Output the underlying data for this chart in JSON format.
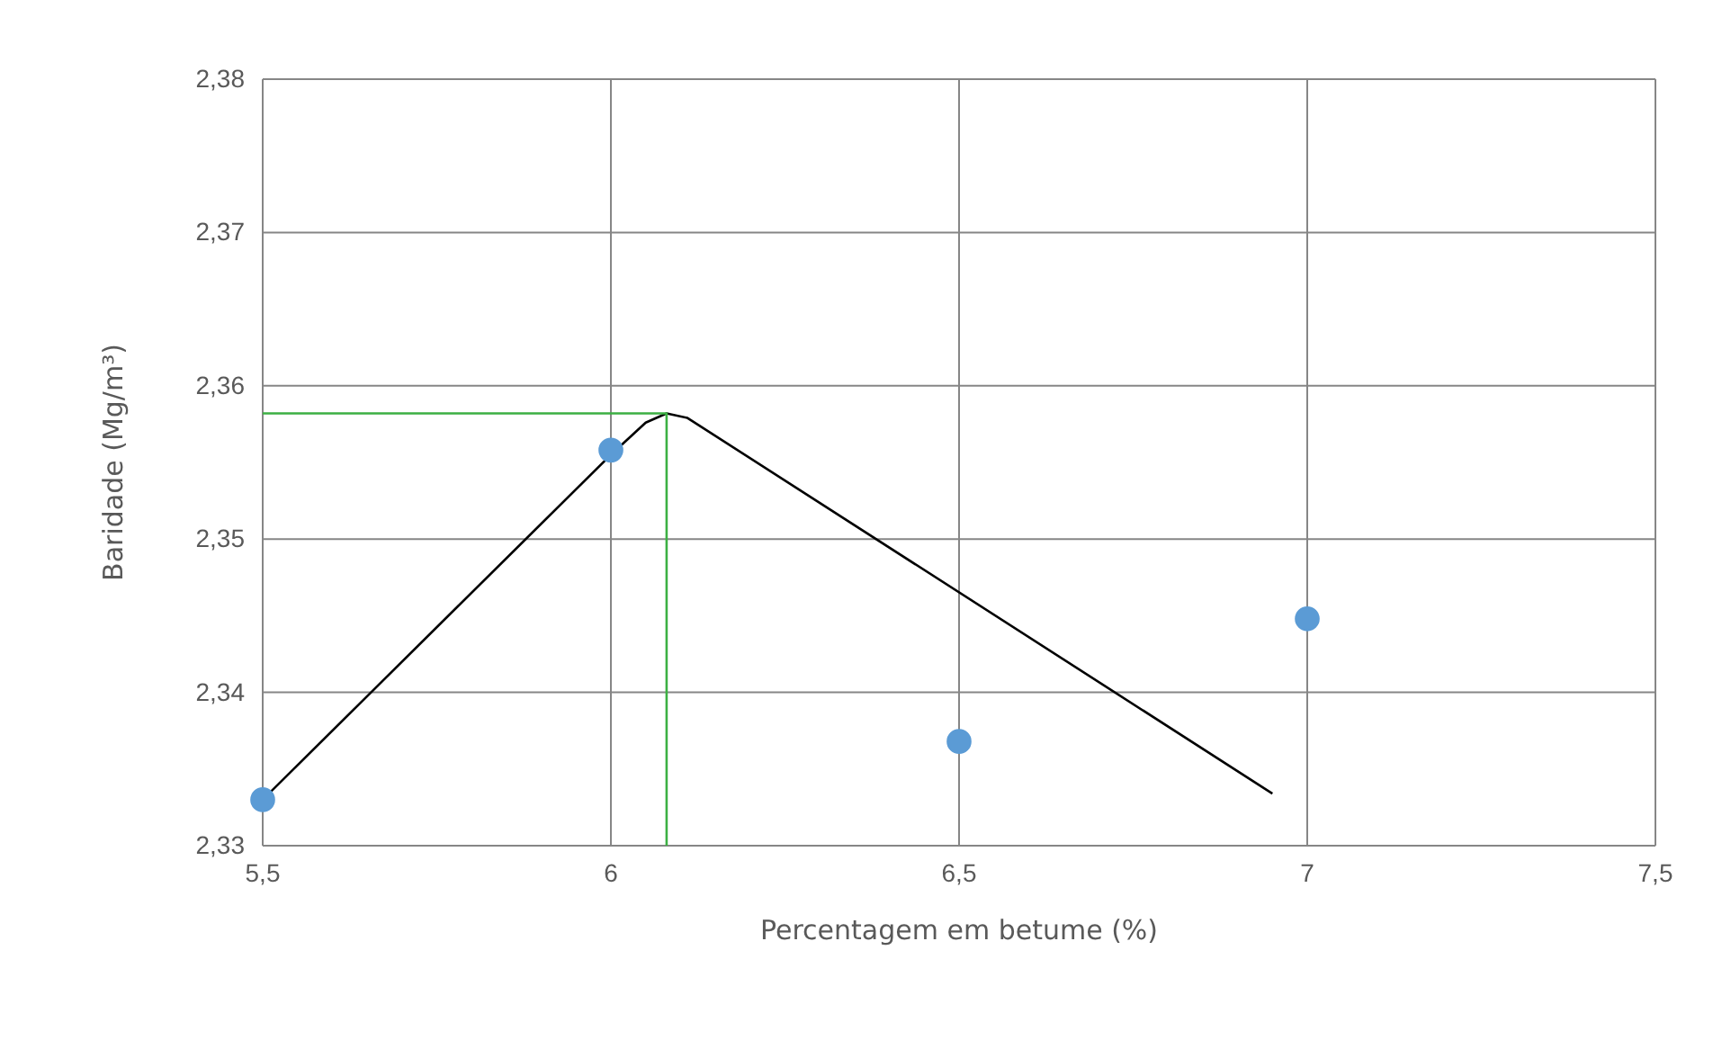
{
  "chart_data": {
    "type": "scatter",
    "xlabel": "Percentagem em betume  (%)",
    "ylabel": "Baridade (Mg/m³)",
    "xlim": [
      5.5,
      7.5
    ],
    "ylim": [
      2.33,
      2.38
    ],
    "xticks": [
      {
        "value": 5.5,
        "label": "5,5"
      },
      6,
      {
        "value": 6.5,
        "label": "6,5"
      },
      7,
      {
        "value": 7.5,
        "label": "7,5"
      }
    ],
    "yticks": [
      {
        "value": 2.33,
        "label": "2,33"
      },
      {
        "value": 2.34,
        "label": "2,34"
      },
      {
        "value": 2.35,
        "label": "2,35"
      },
      {
        "value": 2.36,
        "label": "2,36"
      },
      {
        "value": 2.37,
        "label": "2,37"
      },
      {
        "value": 2.38,
        "label": "2,38"
      }
    ],
    "grid": true,
    "series": [
      {
        "marker": "circle",
        "color": "#5b9bd5",
        "x": [
          5.5,
          6,
          6.5,
          7
        ],
        "values": [
          2.333,
          2.3558,
          2.3368,
          2.3448
        ]
      },
      {
        "type": "line",
        "color": "#000000",
        "x": [
          5.5,
          6.0,
          6.05,
          6.08,
          6.11,
          6.95
        ],
        "values": [
          2.333,
          2.3555,
          2.3576,
          2.3582,
          2.3579,
          2.3334
        ]
      },
      {
        "type": "line",
        "color": "#3cb043",
        "x": [
          5.5,
          6.08,
          6.08
        ],
        "values": [
          2.3582,
          2.3582,
          2.33
        ]
      }
    ]
  }
}
